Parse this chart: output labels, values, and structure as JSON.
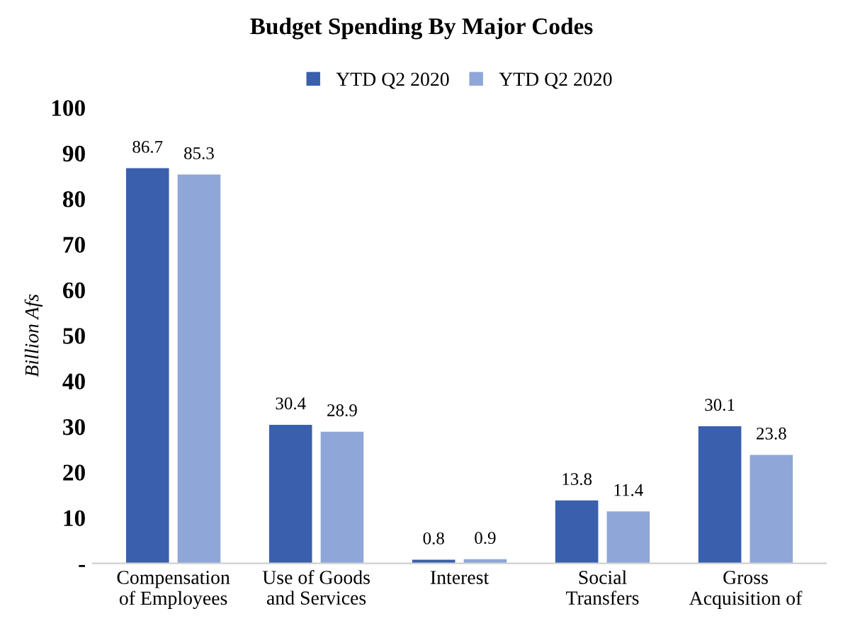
{
  "chart_data": {
    "type": "bar",
    "title": "Budget Spending By Major Codes",
    "ylabel": "Billion Afs",
    "categories": [
      "Compensation\nof Employees",
      "Use of Goods\nand Services",
      "Interest",
      "Social\nTransfers",
      "Gross\nAcquisition of"
    ],
    "series": [
      {
        "name": "YTD Q2 2020",
        "color": "#3a5fad",
        "values": [
          86.7,
          30.4,
          0.8,
          13.8,
          30.1
        ]
      },
      {
        "name": "YTD Q2 2020",
        "color": "#8fa6d8",
        "values": [
          85.3,
          28.9,
          0.9,
          11.4,
          23.8
        ]
      }
    ],
    "ylim": [
      0,
      100
    ],
    "yticks": [
      {
        "value": 0,
        "label": "-"
      },
      10,
      20,
      30,
      40,
      50,
      60,
      70,
      80,
      90,
      100
    ],
    "data_labels": true,
    "legend": "top",
    "grid": false
  }
}
